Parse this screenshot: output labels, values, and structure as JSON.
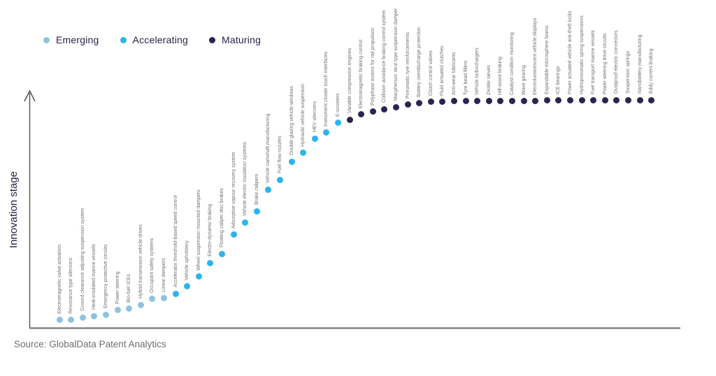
{
  "source_text": "Source: GlobalData Patent Analytics",
  "chart_data": {
    "type": "scatter",
    "title": "",
    "xlabel": "",
    "ylabel": "Innovation stage",
    "legend_position": "top-left",
    "grid": false,
    "ylim_description": "qualitative axis, arrow pointing up, no tick labels",
    "stages": [
      {
        "name": "Emerging",
        "color": "#8fc2e0"
      },
      {
        "name": "Accelerating",
        "color": "#2cb4ec"
      },
      {
        "name": "Maturing",
        "color": "#2b2350"
      }
    ],
    "items": [
      {
        "label": "Electromagnetic valve actuators",
        "stage": "Emerging",
        "level": 3.4
      },
      {
        "label": "Resonance type silencers",
        "stage": "Emerging",
        "level": 3.4
      },
      {
        "label": "Ground clearance adjusting suspension system",
        "stage": "Emerging",
        "level": 4.6
      },
      {
        "label": "Heat-insulated marine vessels",
        "stage": "Emerging",
        "level": 5.2
      },
      {
        "label": "Emergency protective circuits",
        "stage": "Emerging",
        "level": 5.8
      },
      {
        "label": "Power steering",
        "stage": "Emerging",
        "level": 7.7
      },
      {
        "label": "Bio-fuel ICEs",
        "stage": "Emerging",
        "level": 8.3
      },
      {
        "label": "Hybrid transmission vehicle drives",
        "stage": "Emerging",
        "level": 10.1
      },
      {
        "label": "Occupant safety systems",
        "stage": "Emerging",
        "level": 12.6
      },
      {
        "label": "Linear dampers",
        "stage": "Emerging",
        "level": 12.9
      },
      {
        "label": "Accelerator threshold-based speed control",
        "stage": "Accelerating",
        "level": 15.0
      },
      {
        "label": "Vehicle upholstery",
        "stage": "Accelerating",
        "level": 18.1
      },
      {
        "label": "Wheel suspension mounted dampers",
        "stage": "Accelerating",
        "level": 22.4
      },
      {
        "label": "Electro-dynamic braking",
        "stage": "Accelerating",
        "level": 28.5
      },
      {
        "label": "Floating caliper disc brakes",
        "stage": "Accelerating",
        "level": 32.5
      },
      {
        "label": "Adsorptive vapour recovery system",
        "stage": "Accelerating",
        "level": 40.8
      },
      {
        "label": "Vehicle electric insulation systems",
        "stage": "Accelerating",
        "level": 46.3
      },
      {
        "label": "Brake calipers",
        "stage": "Accelerating",
        "level": 51.2
      },
      {
        "label": "Vehicle camshaft manufacturing",
        "stage": "Accelerating",
        "level": 60.7
      },
      {
        "label": "Fuel flow nozzles",
        "stage": "Accelerating",
        "level": 65.0
      },
      {
        "label": "Double glazing vehicle windows",
        "stage": "Accelerating",
        "level": 73.0
      },
      {
        "label": "Hydraulic vehicle suspension",
        "stage": "Accelerating",
        "level": 76.7
      },
      {
        "label": "HEV silencers",
        "stage": "Accelerating",
        "level": 83.1
      },
      {
        "label": "Instrument cluster touch interfaces",
        "stage": "Accelerating",
        "level": 85.6
      },
      {
        "label": "E-scooters",
        "stage": "Accelerating",
        "level": 89.9
      },
      {
        "label": "Variable compression engines",
        "stage": "Maturing",
        "level": 91.4
      },
      {
        "label": "Electromagnetic braking control",
        "stage": "Maturing",
        "level": 93.6
      },
      {
        "label": "Polyphase motors for rail propulsion",
        "stage": "Maturing",
        "level": 94.8
      },
      {
        "label": "Collision avoidance braking control system",
        "stage": "Maturing",
        "level": 96.0
      },
      {
        "label": "Macpherson strut type suspension damper",
        "stage": "Maturing",
        "level": 96.9
      },
      {
        "label": "Pneumatic tyre reinforcements",
        "stage": "Maturing",
        "level": 97.9
      },
      {
        "label": "Battery overdischarge protection",
        "stage": "Maturing",
        "level": 98.5
      },
      {
        "label": "Clutch control valves",
        "stage": "Maturing",
        "level": 99.1
      },
      {
        "label": "Fluid actuated clutches",
        "stage": "Maturing",
        "level": 99.1
      },
      {
        "label": "Anti-wear lubricants",
        "stage": "Maturing",
        "level": 99.4
      },
      {
        "label": "Tyre bead fillers",
        "stage": "Maturing",
        "level": 99.4
      },
      {
        "label": "Vehicle turbochargers",
        "stage": "Maturing",
        "level": 99.4
      },
      {
        "label": "Zeolite sieves",
        "stage": "Maturing",
        "level": 99.4
      },
      {
        "label": "Hill-assist braking",
        "stage": "Maturing",
        "level": 99.4
      },
      {
        "label": "Catalyst condition monitoring",
        "stage": "Maturing",
        "level": 99.4
      },
      {
        "label": "Wave gearing",
        "stage": "Maturing",
        "level": 99.4
      },
      {
        "label": "Electroluminescent vehicle displays",
        "stage": "Maturing",
        "level": 99.4
      },
      {
        "label": "Expandable microsphere foams",
        "stage": "Maturing",
        "level": 99.7
      },
      {
        "label": "ICE bearings",
        "stage": "Maturing",
        "level": 99.7
      },
      {
        "label": "Power actuated vehicle anti-theft locks",
        "stage": "Maturing",
        "level": 99.7
      },
      {
        "label": "Hydropneumatic spring suspensions",
        "stage": "Maturing",
        "level": 99.7
      },
      {
        "label": "Fuel transport marine vessels",
        "stage": "Maturing",
        "level": 99.7
      },
      {
        "label": "Power steering drive circuits",
        "stage": "Maturing",
        "level": 99.7
      },
      {
        "label": "Dustproof electric connectors",
        "stage": "Maturing",
        "level": 100
      },
      {
        "label": "Suspension springs",
        "stage": "Maturing",
        "level": 100
      },
      {
        "label": "Nanobattery manufacturing",
        "stage": "Maturing",
        "level": 100
      },
      {
        "label": "Eddy current braking",
        "stage": "Maturing",
        "level": 100
      }
    ]
  }
}
